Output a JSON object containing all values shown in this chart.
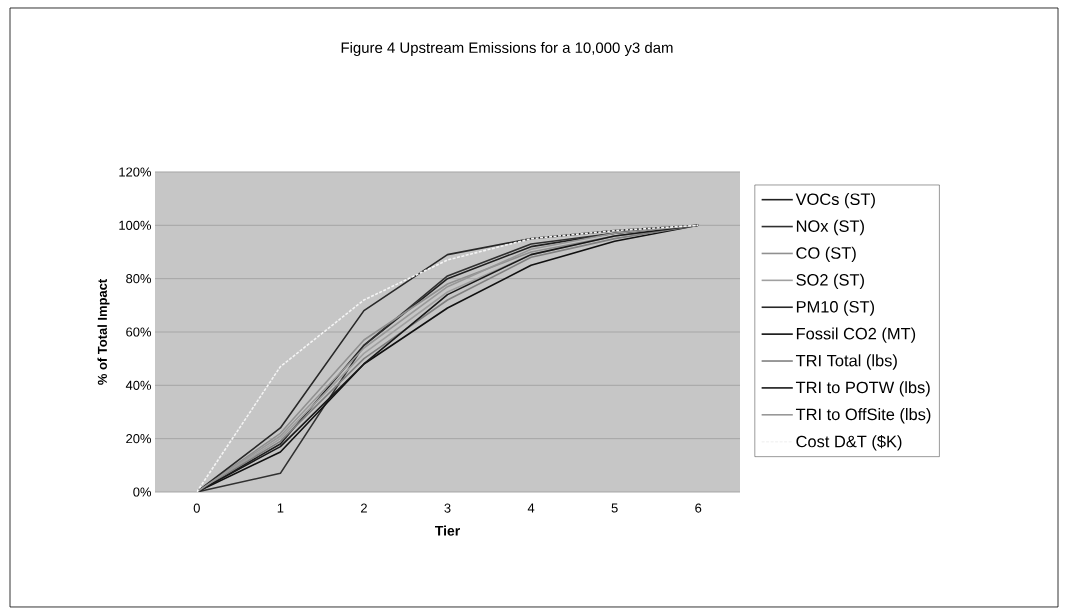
{
  "chart_data": {
    "type": "line",
    "title": "Figure 4  Upstream Emissions for a 10,000 y3 dam",
    "xlabel": "Tier",
    "ylabel": "% of Total Impact",
    "categories": [
      "0",
      "1",
      "2",
      "3",
      "4",
      "5",
      "6"
    ],
    "ylim": [
      0,
      120
    ],
    "yticks": [
      {
        "value": 0,
        "label": "0%"
      },
      {
        "value": 20,
        "label": "20%"
      },
      {
        "value": 40,
        "label": "40%"
      },
      {
        "value": 60,
        "label": "60%"
      },
      {
        "value": 80,
        "label": "80%"
      },
      {
        "value": 100,
        "label": "100%"
      },
      {
        "value": 120,
        "label": "120%"
      }
    ],
    "grid": "y",
    "legend": "right",
    "series": [
      {
        "name": "VOCs (ST)",
        "color": "#202020",
        "values": [
          0,
          18,
          55,
          80,
          92,
          97,
          100
        ]
      },
      {
        "name": "NOx (ST)",
        "color": "#303030",
        "values": [
          0,
          7,
          55,
          81,
          93,
          97,
          100
        ]
      },
      {
        "name": "CO (ST)",
        "color": "#909090",
        "values": [
          0,
          22,
          57,
          78,
          90,
          96,
          100
        ]
      },
      {
        "name": "SO2 (ST)",
        "color": "#a0a0a0",
        "values": [
          0,
          20,
          52,
          75,
          89,
          96,
          100
        ]
      },
      {
        "name": "PM10 (ST)",
        "color": "#282828",
        "values": [
          0,
          24,
          68,
          89,
          95,
          98,
          100
        ]
      },
      {
        "name": "Fossil CO2 (MT)",
        "color": "#101010",
        "values": [
          0,
          15,
          48,
          69,
          85,
          94,
          100
        ]
      },
      {
        "name": "TRI Total (lbs)",
        "color": "#808080",
        "values": [
          0,
          19,
          50,
          72,
          88,
          95,
          100
        ]
      },
      {
        "name": "TRI to POTW (lbs)",
        "color": "#181818",
        "values": [
          0,
          17,
          48,
          74,
          89,
          96,
          100
        ]
      },
      {
        "name": "TRI to OffSite (lbs)",
        "color": "#989898",
        "values": [
          0,
          21,
          54,
          77,
          91,
          97,
          100
        ]
      },
      {
        "name": "Cost D&T ($K)",
        "color": "#f4f4f4",
        "line_style": "dashed",
        "values": [
          0,
          47,
          72,
          87,
          95,
          98,
          100
        ]
      }
    ]
  }
}
